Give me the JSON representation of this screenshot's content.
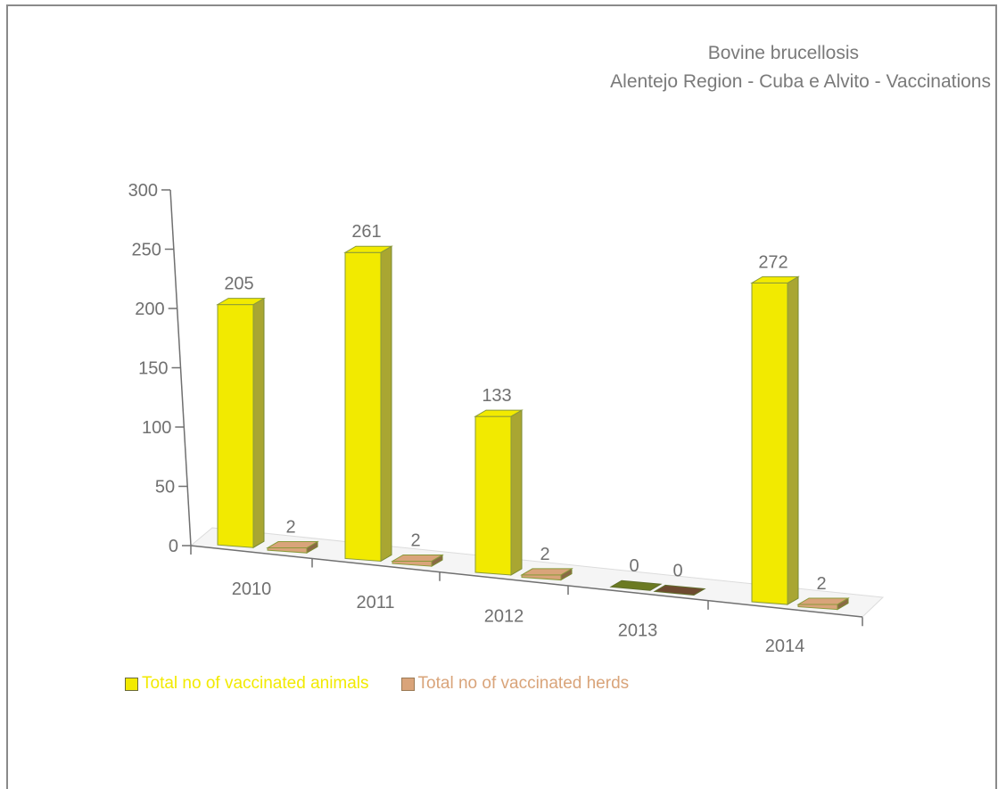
{
  "chart_data": {
    "type": "bar",
    "title": "Bovine brucellosis",
    "subtitle": "Alentejo Region - Cuba e Alvito - Vaccinations",
    "categories": [
      "2010",
      "2011",
      "2012",
      "2013",
      "2014"
    ],
    "series": [
      {
        "name": "Total no of vaccinated animals",
        "values": [
          205,
          261,
          133,
          0,
          272
        ],
        "labels": [
          "205",
          "261",
          "133",
          "0",
          "272"
        ],
        "color": "#f2ea00",
        "side_color": "#a9a632"
      },
      {
        "name": "Total no of vaccinated herds",
        "values": [
          2,
          2,
          2,
          0,
          2
        ],
        "labels": [
          "2",
          "2",
          "2",
          "0",
          "2"
        ],
        "color": "#d9a47a",
        "side_color": "#8a6a45"
      }
    ],
    "y_ticks": [
      "300",
      "250",
      "200",
      "150",
      "100",
      "50",
      "0"
    ],
    "ylim": [
      0,
      300
    ],
    "style": "3d",
    "legend_position": "bottom-left",
    "grid": false
  }
}
